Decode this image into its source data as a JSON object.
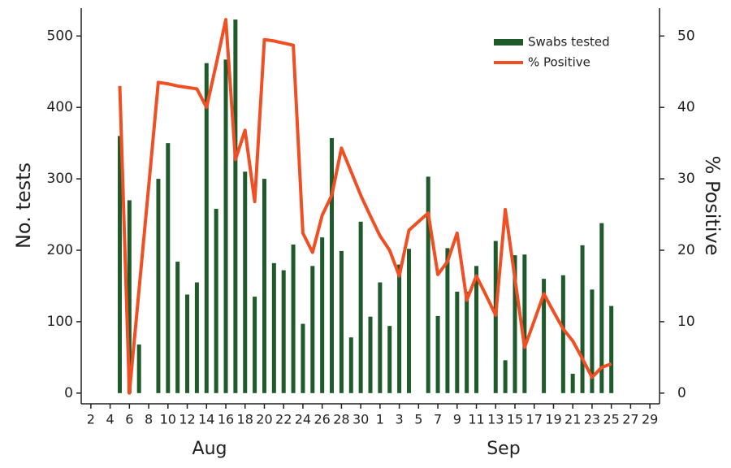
{
  "chart_data": {
    "type": "bar_line",
    "categories": [
      null,
      "2",
      null,
      "4",
      null,
      "6",
      null,
      "8",
      null,
      "10",
      null,
      "12",
      null,
      "14",
      null,
      "16",
      null,
      "18",
      null,
      "20",
      null,
      "22",
      null,
      "24",
      null,
      "26",
      null,
      "28",
      null,
      "30",
      null,
      "1",
      null,
      "3",
      null,
      "5",
      null,
      "7",
      null,
      "9",
      null,
      "11",
      null,
      "13",
      null,
      "15",
      null,
      "17",
      null,
      "19",
      null,
      "21",
      null,
      "23",
      null,
      "25",
      null,
      "27",
      null,
      "29",
      null
    ],
    "month_labels": [
      "Aug",
      "Sep"
    ],
    "y_label": "No. tests",
    "y2_label": "% Positive",
    "series": [
      {
        "name": "Swabs tested",
        "type": "bar",
        "color": "#1e5a2a",
        "values": [
          null,
          null,
          null,
          null,
          360,
          270,
          68,
          null,
          300,
          350,
          184,
          138,
          155,
          462,
          258,
          467,
          523,
          310,
          135,
          300,
          182,
          172,
          208,
          97,
          178,
          218,
          357,
          199,
          78,
          240,
          107,
          155,
          94,
          180,
          202,
          null,
          303,
          108,
          203,
          142,
          142,
          178,
          null,
          213,
          46,
          193,
          194,
          null,
          160,
          null,
          165,
          27,
          207,
          145,
          238,
          122,
          null,
          null,
          null,
          null,
          null
        ]
      },
      {
        "name": "% Positive",
        "type": "line",
        "axis": "y2",
        "color": "#f04e23",
        "values": [
          null,
          null,
          null,
          null,
          43,
          0,
          14.5,
          29,
          43.5,
          43.3,
          43,
          42.8,
          42.6,
          40,
          46,
          52.3,
          32.7,
          36.8,
          26.8,
          49.5,
          49.3,
          49,
          48.7,
          22.4,
          19.7,
          24.9,
          27.7,
          34.3,
          31,
          27.7,
          24.8,
          22,
          20,
          16.4,
          22.8,
          24,
          25.2,
          16.6,
          18.4,
          22.4,
          13,
          16.4,
          13.7,
          10.9,
          25.7,
          16,
          6.4,
          10.1,
          13.9,
          11.4,
          9,
          7.3,
          4.8,
          2.2,
          3.6,
          4.1,
          null,
          null,
          null,
          null,
          null
        ]
      }
    ],
    "ylim": [
      -15,
      539
    ],
    "yticks": [
      0,
      100,
      200,
      300,
      400,
      500
    ],
    "y2lim": [
      -1.5,
      53.9
    ],
    "y2ticks": [
      0,
      10,
      20,
      30,
      40,
      50
    ],
    "legend": "upper right"
  }
}
